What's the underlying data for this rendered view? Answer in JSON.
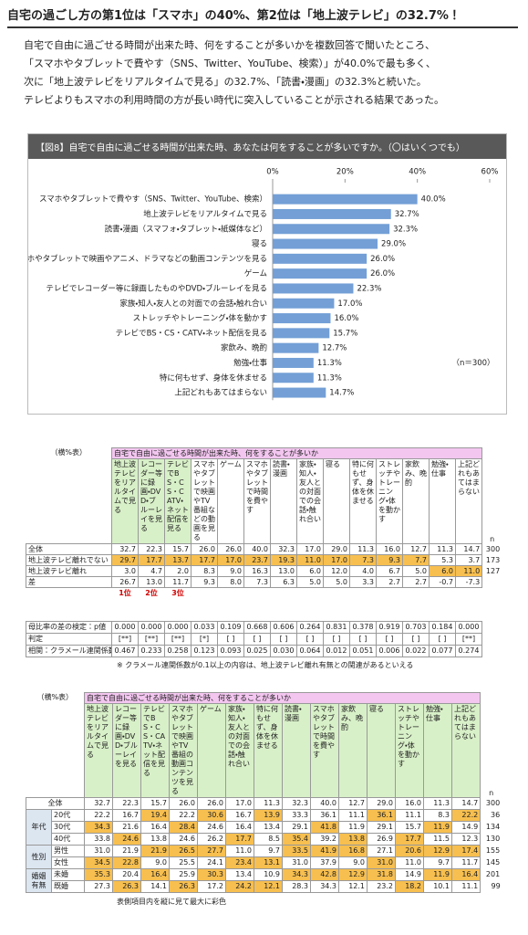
{
  "header": {
    "title": "自宅の過ごし方の第1位は「スマホ」の40%、第2位は「地上波テレビ」の32.7%！"
  },
  "intro": {
    "lines": [
      "自宅で自由に過ごせる時間が出来た時、何をすることが多いかを複数回答で聞いたところ、",
      "「スマホやタブレットで費やす（SNS、Twitter、YouTube、検索）」が40.0%で最も多く、",
      "次に「地上波テレビをリアルタイムで見る」の32.7%、「読書・漫画」の32.3%と続いた。",
      "テレビよりもスマホの利用時間の方が長い時代に突入していることが示される結果であった。"
    ]
  },
  "chart_data": {
    "type": "bar",
    "orientation": "horizontal",
    "title": "【図8】自宅で自由に過ごせる時間が出来た時、あなたは何をすることが多いですか。（〇はいくつでも）",
    "categories": [
      "スマホやタブレットで費やす（SNS、Twitter、YouTube、検索）",
      "地上波テレビをリアルタイムで見る",
      "読書・漫画（スマフォ・タブレット・紙媒体など）",
      "寝る",
      "スマホやタブレットで映画やアニメ、ドラマなどの動画コンテンツを見る",
      "ゲーム",
      "テレビでレコーダー等に録画したものやDVD・ブルーレイを見る",
      "家族・知人・友人との対面での会話・触れ合い",
      "ストレッチやトレーニング・体を動かす",
      "テレビでBS・CS・CATV・ネット配信を見る",
      "家飲み、晩酌",
      "勉強・仕事",
      "特に何もせず、身体を休ませる",
      "上記どれもあてはまらない"
    ],
    "values": [
      40,
      32.7,
      32.3,
      29,
      26,
      26,
      22.3,
      17,
      16,
      15.7,
      12.7,
      11.3,
      11.3,
      14.7
    ],
    "value_labels": [
      "40.0%",
      "32.7%",
      "32.3%",
      "29.0%",
      "26.0%",
      "26.0%",
      "22.3%",
      "17.0%",
      "16.0%",
      "15.7%",
      "12.7%",
      "11.3%",
      "11.3%",
      "14.7%"
    ],
    "color": "#739fd6",
    "xlim": [
      0,
      60
    ],
    "xticks": [
      {
        "value": 0,
        "label": "0%"
      },
      {
        "value": 20,
        "label": "20%"
      },
      {
        "value": 40,
        "label": "40%"
      },
      {
        "value": 60,
        "label": "60%"
      }
    ],
    "note": "（n＝300）"
  },
  "table1": {
    "corner": "（横%表）",
    "group_header": "自宅で自由に過ごせる時間が出来た時、何をすることが多いか",
    "columns": [
      "地上波テレビをリアルタイムで見る",
      "レコーダー等に録画・DVD・ブルーレイを見る",
      "テレビでBS・CS・CATV・ネット配信を見る",
      "スマホやタブレットで映画やTV番組などの動画を見る",
      "ゲーム",
      "スマホやタブレットで時間を費やす",
      "読書・漫画",
      "家族・知人・友人との対面での会話・触れ合い",
      "寝る",
      "特に何もせず、身体を休ませる",
      "ストレッチやトレーニング・体を動かす",
      "家飲み、晩酌",
      "勉強・仕事",
      "上記どれもあてはまらない",
      "n"
    ],
    "rows": [
      {
        "label": "全体",
        "cells": [
          "32.7",
          "22.3",
          "15.7",
          "26.0",
          "26.0",
          "40.0",
          "32.3",
          "17.0",
          "29.0",
          "11.3",
          "16.0",
          "12.7",
          "11.3",
          "14.7",
          "300"
        ]
      },
      {
        "label": "地上波テレビ離れでない",
        "cells": [
          "29.7",
          "17.7",
          "13.7",
          "17.7",
          "17.0",
          "23.7",
          "19.3",
          "11.0",
          "17.0",
          "7.3",
          "9.3",
          "7.7",
          "5.3",
          "3.7",
          "173"
        ]
      },
      {
        "label": "地上波テレビ離れ",
        "cells": [
          "3.0",
          "4.7",
          "2.0",
          "8.3",
          "9.0",
          "16.3",
          "13.0",
          "6.0",
          "12.0",
          "4.0",
          "6.7",
          "5.0",
          "6.0",
          "11.0",
          "127"
        ]
      },
      {
        "label": "差",
        "cells": [
          "26.7",
          "13.0",
          "11.7",
          "9.3",
          "8.0",
          "7.3",
          "6.3",
          "5.0",
          "5.0",
          "3.3",
          "2.7",
          "2.7",
          "-0.7",
          "-7.3"
        ]
      }
    ],
    "ranks": [
      "1位",
      "2位",
      "3位"
    ]
  },
  "tests": {
    "rows": [
      {
        "label": "母比率の差の検定：p値",
        "cells": [
          "0.000",
          "0.000",
          "0.000",
          "0.033",
          "0.109",
          "0.668",
          "0.606",
          "0.264",
          "0.831",
          "0.378",
          "0.919",
          "0.703",
          "0.184",
          "0.000"
        ]
      },
      {
        "label": "判定",
        "cells": [
          "[**]",
          "[**]",
          "[**]",
          "[*]",
          "[ ]",
          "[ ]",
          "[ ]",
          "[ ]",
          "[ ]",
          "[ ]",
          "[ ]",
          "[ ]",
          "[ ]",
          "[**]"
        ]
      },
      {
        "label": "相関：クラメール連関係数",
        "cells": [
          "0.467",
          "0.233",
          "0.258",
          "0.123",
          "0.093",
          "0.025",
          "0.030",
          "0.064",
          "0.012",
          "0.051",
          "0.006",
          "0.022",
          "0.077",
          "0.274"
        ]
      }
    ],
    "note": "※ クラメール連関係数が0.1以上の内容は、地上波テレビ離れ有無との関連があるといえる"
  },
  "table2": {
    "corner": "（横%表）",
    "group_header": "自宅で自由に過ごせる時間が出来た時、何をすることが多いか",
    "columns": [
      "地上波テレビをリアルタイムで見る",
      "レコーダー等に録画・DVD・ブルーレイを見る",
      "テレビでBS・CS・CATV・ネット配信を見る",
      "スマホやタブレットで映画やTV番組の動画コンテンツを見る",
      "ゲーム",
      "家族・知人・友人との対面での会話・触れ合い",
      "特に何もせず、身体を休ませる",
      "読書・漫画",
      "スマホやタブレットで時間を費やす",
      "家飲み、晩酌",
      "寝る",
      "ストレッチやトレーニング・体を動かす",
      "勉強・仕事",
      "上記どれもあてはまらない",
      "n"
    ],
    "total": {
      "label": "全体",
      "cells": [
        "32.7",
        "22.3",
        "15.7",
        "26.0",
        "26.0",
        "17.0",
        "11.3",
        "32.3",
        "40.0",
        "12.7",
        "29.0",
        "16.0",
        "11.3",
        "14.7",
        "300"
      ]
    },
    "groups": [
      {
        "label": "年代",
        "rows": [
          {
            "label": "20代",
            "cells": [
              "22.2",
              "16.7",
              "19.4",
              "22.2",
              "30.6",
              "16.7",
              "13.9",
              "33.3",
              "36.1",
              "11.1",
              "36.1",
              "11.1",
              "8.3",
              "22.2",
              "36"
            ]
          },
          {
            "label": "30代",
            "cells": [
              "34.3",
              "21.6",
              "16.4",
              "28.4",
              "24.6",
              "16.4",
              "13.4",
              "29.1",
              "41.8",
              "11.9",
              "29.1",
              "15.7",
              "11.9",
              "14.9",
              "134"
            ]
          },
          {
            "label": "40代",
            "cells": [
              "33.8",
              "24.6",
              "13.8",
              "24.6",
              "26.2",
              "17.7",
              "8.5",
              "35.4",
              "39.2",
              "13.8",
              "26.9",
              "17.7",
              "11.5",
              "12.3",
              "130"
            ]
          }
        ]
      },
      {
        "label": "性別",
        "rows": [
          {
            "label": "男性",
            "cells": [
              "31.0",
              "21.9",
              "21.9",
              "26.5",
              "27.7",
              "11.0",
              "9.7",
              "33.5",
              "41.9",
              "16.8",
              "27.1",
              "20.6",
              "12.9",
              "17.4",
              "155"
            ]
          },
          {
            "label": "女性",
            "cells": [
              "34.5",
              "22.8",
              "9.0",
              "25.5",
              "24.1",
              "23.4",
              "13.1",
              "31.0",
              "37.9",
              "9.0",
              "31.0",
              "11.0",
              "9.7",
              "11.7",
              "145"
            ]
          }
        ]
      },
      {
        "label": "婚姻有無",
        "rows": [
          {
            "label": "未婚",
            "cells": [
              "35.3",
              "20.4",
              "16.4",
              "25.9",
              "30.3",
              "13.4",
              "10.9",
              "34.3",
              "42.8",
              "12.9",
              "31.8",
              "14.9",
              "11.9",
              "16.4",
              "201"
            ]
          },
          {
            "label": "既婚",
            "cells": [
              "27.3",
              "26.3",
              "14.1",
              "26.3",
              "17.2",
              "24.2",
              "12.1",
              "28.3",
              "34.3",
              "12.1",
              "23.2",
              "18.2",
              "10.1",
              "11.1",
              "99"
            ]
          }
        ]
      }
    ],
    "note": "表側項目内を縦に見て最大に彩色"
  }
}
